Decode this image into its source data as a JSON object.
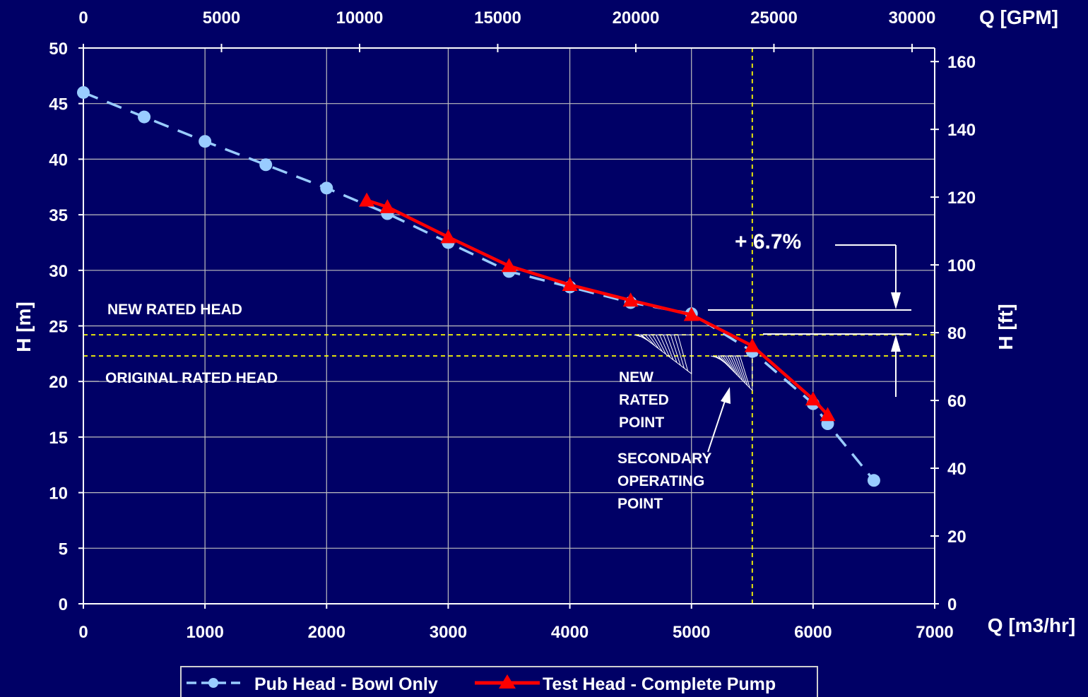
{
  "chart_data": {
    "type": "line",
    "x_bottom": {
      "label": "Q [m3/hr]",
      "ticks": [
        "0",
        "1000",
        "2000",
        "3000",
        "4000",
        "5000",
        "6000",
        "7000"
      ],
      "range": [
        0,
        7000
      ]
    },
    "x_top": {
      "label": "Q [GPM]",
      "ticks": [
        "0",
        "5000",
        "10000",
        "15000",
        "20000",
        "25000",
        "30000"
      ],
      "range": [
        0,
        30820
      ]
    },
    "y_left": {
      "label": "H [m]",
      "ticks": [
        "0",
        "5",
        "10",
        "15",
        "20",
        "25",
        "30",
        "35",
        "40",
        "45",
        "50"
      ],
      "range": [
        0,
        50
      ]
    },
    "y_right": {
      "label": "H [ft]",
      "ticks": [
        "0",
        "20",
        "40",
        "60",
        "80",
        "100",
        "120",
        "140",
        "160"
      ],
      "range": [
        0,
        164
      ]
    },
    "grid": true,
    "legend_position": "bottom",
    "series": [
      {
        "name": "Pub Head - Bowl Only",
        "color": "#99ccff",
        "style": "dashed",
        "marker": "circle",
        "x": [
          0,
          500,
          1000,
          1500,
          2000,
          2500,
          3000,
          3500,
          4000,
          4500,
          5000,
          5500,
          6000,
          6120,
          6500
        ],
        "y": [
          46,
          43.8,
          41.6,
          39.5,
          37.4,
          35.1,
          32.5,
          29.9,
          28.5,
          27.1,
          26.1,
          22.7,
          18,
          16.2,
          11.1
        ]
      },
      {
        "name": "Test Head - Complete Pump",
        "color": "#ff0000",
        "style": "solid",
        "marker": "triangle",
        "x": [
          2330,
          2500,
          3000,
          3500,
          4000,
          4500,
          5000,
          5500,
          6000,
          6120
        ],
        "y": [
          36.3,
          35.7,
          33,
          30.4,
          28.7,
          27.3,
          26,
          23.2,
          18.4,
          17
        ]
      }
    ],
    "reference_lines": {
      "new_rated_head": 24.2,
      "original_rated_head": 22.3,
      "vertical_q": 5500
    },
    "annotations": {
      "new_rated_head": "NEW RATED HEAD",
      "original_rated_head": "ORIGINAL RATED HEAD",
      "new_rated_point": [
        "NEW",
        "RATED",
        "POINT"
      ],
      "secondary_operating_point": [
        "SECONDARY",
        "OPERATING",
        "POINT"
      ],
      "percent_increase": "+ 6.7%"
    }
  },
  "colors": {
    "background": "#000066",
    "grid": "#bfbfbf",
    "reference": "#ffff00"
  }
}
